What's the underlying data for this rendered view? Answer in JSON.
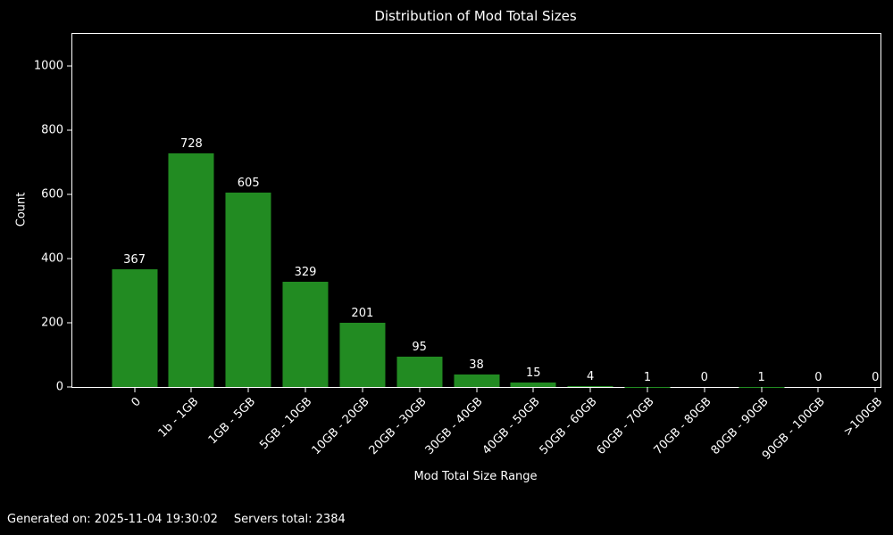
{
  "chart_data": {
    "type": "bar",
    "title": "Distribution of Mod Total Sizes",
    "xlabel": "Mod Total Size Range",
    "ylabel": "Count",
    "categories": [
      "0",
      "1b - 1GB",
      "1GB - 5GB",
      "5GB - 10GB",
      "10GB - 20GB",
      "20GB - 30GB",
      "30GB - 40GB",
      "40GB - 50GB",
      "50GB - 60GB",
      "60GB - 70GB",
      "70GB - 80GB",
      "80GB - 90GB",
      "90GB - 100GB",
      ">100GB"
    ],
    "values": [
      367,
      728,
      605,
      329,
      201,
      95,
      38,
      15,
      4,
      1,
      0,
      1,
      0,
      0
    ],
    "ylim": [
      0,
      1100
    ],
    "yticks": [
      0,
      200,
      400,
      600,
      800,
      1000
    ],
    "bar_color": "#228B22",
    "background_color": "#000000",
    "text_color": "#ffffff",
    "grid": false,
    "legend": "none",
    "bar_value_labels": true
  },
  "footer": {
    "generated": "Generated on: 2025-11-04 19:30:02",
    "servers_total": "Servers total: 2384"
  }
}
